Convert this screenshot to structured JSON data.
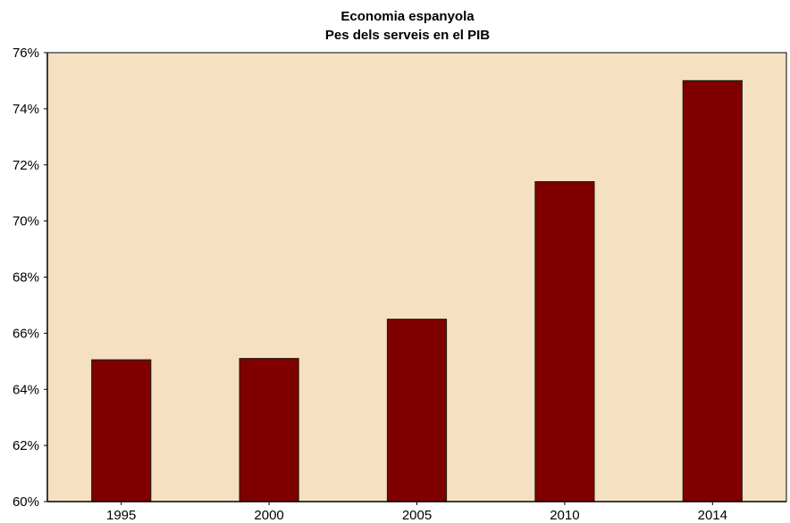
{
  "chart_data": {
    "type": "bar",
    "title": "Economia espanyola",
    "subtitle": "Pes dels serveis en el PIB",
    "xlabel": "",
    "ylabel": "",
    "categories": [
      "1995",
      "2000",
      "2005",
      "2010",
      "2014"
    ],
    "values": [
      65.05,
      65.1,
      66.5,
      71.4,
      75.0
    ],
    "ylim": [
      60,
      76
    ],
    "yticks": [
      60,
      62,
      64,
      66,
      68,
      70,
      72,
      74,
      76
    ],
    "ytick_labels": [
      "60%",
      "62%",
      "64%",
      "66%",
      "68%",
      "70%",
      "72%",
      "74%",
      "76%"
    ],
    "grid": false,
    "legend": "none",
    "colors": {
      "bar": "#800000",
      "bar_edge": "#2a1a10",
      "plot_background": "#f5e1c2",
      "axis": "#000000"
    }
  }
}
